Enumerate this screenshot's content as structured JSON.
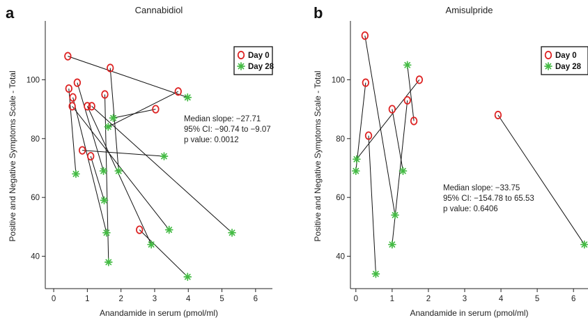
{
  "chart_data": [
    {
      "type": "scatter",
      "panel": "a",
      "title": "Cannabidiol",
      "xlabel": "Anandamide in serum (pmol/ml)",
      "ylabel": "Positive and Negative Symptoms Scale - Total",
      "xlim": [
        -0.25,
        6.5
      ],
      "ylim": [
        29,
        120
      ],
      "xticks": [
        0,
        1,
        2,
        3,
        4,
        5,
        6
      ],
      "yticks": [
        40,
        60,
        80,
        100
      ],
      "legend": {
        "position": "top-right",
        "entries": [
          {
            "label": "Day 0",
            "marker": "circle",
            "color": "#dd2222"
          },
          {
            "label": "Day 28",
            "marker": "asterisk",
            "color": "#44bb44"
          }
        ]
      },
      "series": [
        {
          "name": "Day 0",
          "color": "#dd2222",
          "points": [
            [
              0.42,
              108
            ],
            [
              1.68,
              104
            ],
            [
              0.7,
              99
            ],
            [
              0.45,
              97
            ],
            [
              0.57,
              94
            ],
            [
              1.52,
              95
            ],
            [
              0.55,
              91
            ],
            [
              1.0,
              91
            ],
            [
              1.13,
              91
            ],
            [
              3.7,
              96
            ],
            [
              3.03,
              90
            ],
            [
              0.85,
              76
            ],
            [
              1.1,
              74
            ],
            [
              2.55,
              49
            ]
          ]
        },
        {
          "name": "Day 28",
          "color": "#44bb44",
          "points": [
            [
              3.98,
              94
            ],
            [
              1.93,
              69
            ],
            [
              1.48,
              69
            ],
            [
              0.66,
              68
            ],
            [
              1.5,
              59
            ],
            [
              1.57,
              48
            ],
            [
              3.43,
              49
            ],
            [
              2.9,
              44
            ],
            [
              5.3,
              48
            ],
            [
              1.63,
              38
            ],
            [
              1.62,
              84
            ],
            [
              1.77,
              87
            ],
            [
              3.28,
              74
            ],
            [
              3.98,
              33
            ]
          ]
        }
      ],
      "pairs": [
        [
          [
            0.42,
            108
          ],
          [
            3.98,
            94
          ]
        ],
        [
          [
            1.68,
            104
          ],
          [
            1.93,
            69
          ]
        ],
        [
          [
            0.7,
            99
          ],
          [
            1.48,
            69
          ]
        ],
        [
          [
            0.45,
            97
          ],
          [
            0.66,
            68
          ]
        ],
        [
          [
            0.57,
            94
          ],
          [
            1.57,
            48
          ]
        ],
        [
          [
            1.52,
            95
          ],
          [
            1.63,
            38
          ]
        ],
        [
          [
            0.55,
            91
          ],
          [
            3.43,
            49
          ]
        ],
        [
          [
            1.0,
            91
          ],
          [
            2.9,
            44
          ]
        ],
        [
          [
            1.13,
            91
          ],
          [
            5.3,
            48
          ]
        ],
        [
          [
            3.7,
            96
          ],
          [
            1.62,
            84
          ]
        ],
        [
          [
            3.03,
            90
          ],
          [
            1.77,
            87
          ]
        ],
        [
          [
            0.85,
            76
          ],
          [
            3.28,
            74
          ]
        ],
        [
          [
            1.1,
            74
          ],
          [
            1.5,
            59
          ]
        ],
        [
          [
            2.55,
            49
          ],
          [
            3.98,
            33
          ]
        ]
      ],
      "annotation": [
        "Median slope: −27.71",
        "95% CI: −90.74 to −9.07",
        "p value: 0.0012"
      ]
    },
    {
      "type": "scatter",
      "panel": "b",
      "title": "Amisulpride",
      "xlabel": "Anandamide in serum (pmol/ml)",
      "ylabel": "Positive and Negative Symptoms Scale - Total",
      "xlim": [
        -0.15,
        6.4
      ],
      "ylim": [
        29,
        120
      ],
      "xticks": [
        0,
        1,
        2,
        3,
        4,
        5,
        6
      ],
      "yticks": [
        40,
        60,
        80,
        100
      ],
      "legend": {
        "position": "top-right",
        "entries": [
          {
            "label": "Day 0",
            "marker": "circle",
            "color": "#dd2222"
          },
          {
            "label": "Day 28",
            "marker": "asterisk",
            "color": "#44bb44"
          }
        ]
      },
      "series": [
        {
          "name": "Day 0",
          "color": "#dd2222",
          "points": [
            [
              0.25,
              115
            ],
            [
              0.27,
              99
            ],
            [
              0.35,
              81
            ],
            [
              1.0,
              90
            ],
            [
              1.42,
              93
            ],
            [
              1.75,
              100
            ],
            [
              1.6,
              86
            ],
            [
              3.92,
              88
            ]
          ]
        },
        {
          "name": "Day 28",
          "color": "#44bb44",
          "points": [
            [
              1.08,
              54
            ],
            [
              0.55,
              34
            ],
            [
              0.0,
              69
            ],
            [
              1.0,
              44
            ],
            [
              0.02,
              73
            ],
            [
              1.3,
              69
            ],
            [
              1.42,
              105
            ],
            [
              6.3,
              44
            ]
          ]
        }
      ],
      "pairs": [
        [
          [
            0.25,
            115
          ],
          [
            1.08,
            54
          ]
        ],
        [
          [
            0.27,
            99
          ],
          [
            0.0,
            69
          ]
        ],
        [
          [
            0.35,
            81
          ],
          [
            0.55,
            34
          ]
        ],
        [
          [
            1.0,
            90
          ],
          [
            1.3,
            69
          ]
        ],
        [
          [
            1.42,
            93
          ],
          [
            1.0,
            44
          ]
        ],
        [
          [
            1.75,
            100
          ],
          [
            0.02,
            73
          ]
        ],
        [
          [
            1.6,
            86
          ],
          [
            1.42,
            105
          ]
        ],
        [
          [
            3.92,
            88
          ],
          [
            6.3,
            44
          ]
        ]
      ],
      "annotation": [
        "Median slope: −33.75",
        "95% CI: −154.78 to 65.53",
        "p value: 0.6406"
      ]
    }
  ]
}
